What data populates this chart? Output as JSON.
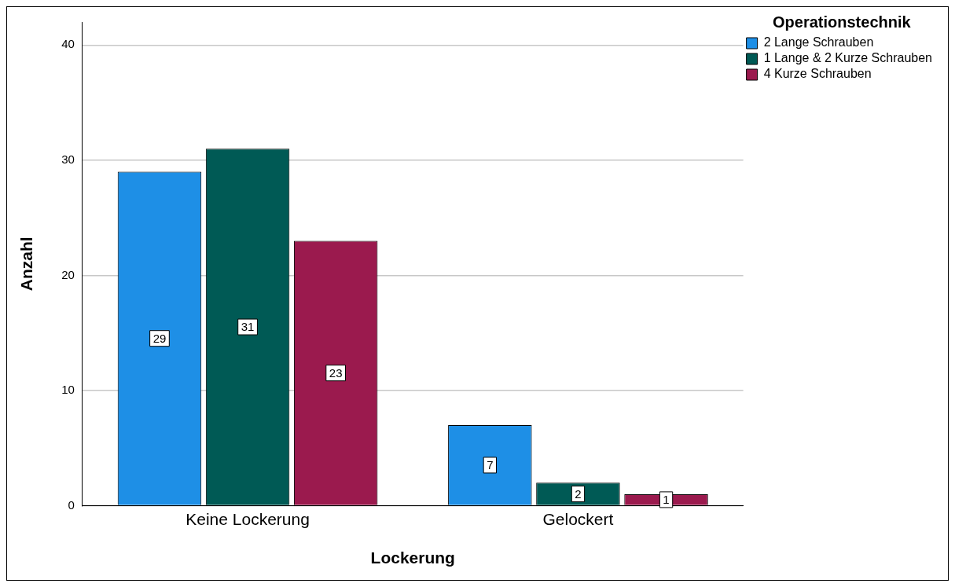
{
  "chart_data": {
    "type": "bar",
    "xlabel": "Lockerung",
    "ylabel": "Anzahl",
    "legend_title": "Operationstechnik",
    "categories": [
      "Keine Lockerung",
      "Gelockert"
    ],
    "series": [
      {
        "name": "2 Lange Schrauben",
        "color": "#1e8fe6",
        "values": [
          29,
          7
        ]
      },
      {
        "name": "1 Lange & 2 Kurze Schrauben",
        "color": "#005a55",
        "values": [
          31,
          2
        ]
      },
      {
        "name": "4 Kurze Schrauben",
        "color": "#9b1a4e",
        "values": [
          23,
          1
        ]
      }
    ],
    "ylim": [
      0,
      42
    ],
    "yticks": [
      0,
      10,
      20,
      30,
      40
    ],
    "grid": "y",
    "legend": "top right",
    "data_labels": true
  }
}
